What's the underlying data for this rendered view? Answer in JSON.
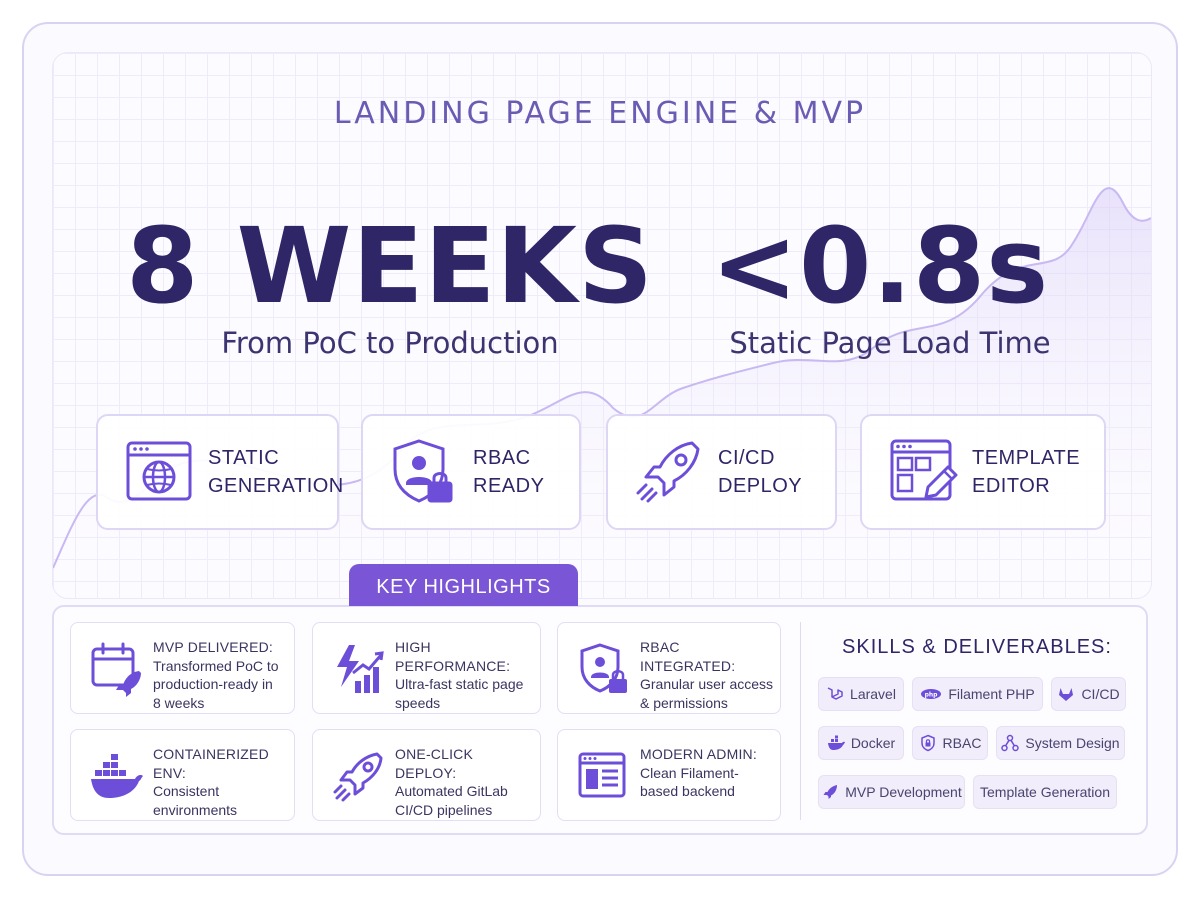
{
  "header": {
    "eyebrow": "LANDING PAGE ENGINE & MVP"
  },
  "metrics": [
    {
      "value": "8 WEEKS",
      "caption": "From PoC to Production"
    },
    {
      "value": "<0.8s",
      "caption": "Static Page Load Time"
    }
  ],
  "features": [
    {
      "line1": "STATIC",
      "line2": "GENERATION",
      "icon": "browser-globe-icon"
    },
    {
      "line1": "RBAC",
      "line2": "READY",
      "icon": "shield-user-lock-icon"
    },
    {
      "line1": "CI/CD",
      "line2": "DEPLOY",
      "icon": "rocket-icon"
    },
    {
      "line1": "TEMPLATE",
      "line2": "EDITOR",
      "icon": "template-edit-icon"
    }
  ],
  "highlights": {
    "tab_label": "KEY HIGHLIGHTS",
    "items": [
      {
        "title": "MVP DELIVERED:",
        "l1": "Transformed PoC to",
        "l2": "production-ready in",
        "l3": "8 weeks",
        "icon": "calendar-rocket-icon"
      },
      {
        "title": "HIGH PERFORMANCE:",
        "l1": "Ultra-fast static page",
        "l2": "speeds",
        "l3": "",
        "icon": "lightning-chart-icon"
      },
      {
        "title": "RBAC INTEGRATED:",
        "l1": "Granular user access",
        "l2": "& permissions",
        "l3": "",
        "icon": "shield-user-lock-icon"
      },
      {
        "title": "CONTAINERIZED ENV:",
        "l1": "Consistent",
        "l2": "environments",
        "l3": "",
        "icon": "docker-whale-icon"
      },
      {
        "title": "ONE-CLICK DEPLOY:",
        "l1": "Automated GitLab",
        "l2": "CI/CD pipelines",
        "l3": "",
        "icon": "rocket-icon"
      },
      {
        "title": "MODERN ADMIN:",
        "l1": "Clean Filament-",
        "l2": "based backend",
        "l3": "",
        "icon": "admin-window-icon"
      }
    ]
  },
  "skills": {
    "title": "SKILLS & DELIVERABLES:",
    "chips": [
      {
        "label": "Laravel",
        "icon": "laravel-icon"
      },
      {
        "label": "Filament PHP",
        "icon": "filament-icon"
      },
      {
        "label": "CI/CD",
        "icon": "gitlab-icon"
      },
      {
        "label": "Docker",
        "icon": "docker-icon"
      },
      {
        "label": "RBAC",
        "icon": "shield-lock-icon"
      },
      {
        "label": "System Design",
        "icon": "network-icon"
      },
      {
        "label": "MVP Development",
        "icon": "rocket-icon"
      },
      {
        "label": "Template Generation",
        "icon": ""
      }
    ]
  },
  "colors": {
    "primary_dark": "#2e2666",
    "accent": "#6d4ed8",
    "tab": "#7a55d6",
    "border": "#ddd6f5",
    "background": "#fbfaff"
  }
}
